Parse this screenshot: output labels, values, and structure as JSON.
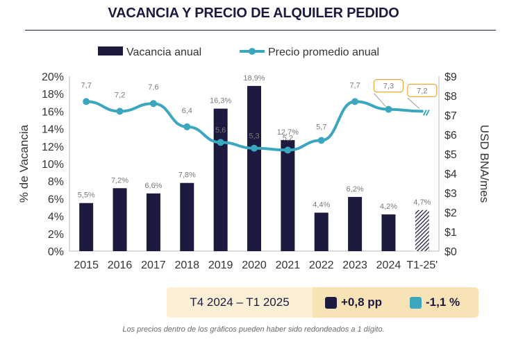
{
  "title": "VACANCIA Y PRECIO DE ALQUILER PEDIDO",
  "chart_data": {
    "type": "bar+line",
    "categories": [
      "2015",
      "2016",
      "2017",
      "2018",
      "2019",
      "2020",
      "2021",
      "2022",
      "2023",
      "2024",
      "T1-25'"
    ],
    "series": [
      {
        "name": "Vacancia anual",
        "axis": "left",
        "type": "bar",
        "values": [
          5.5,
          7.2,
          6.6,
          7.8,
          16.3,
          18.9,
          12.7,
          4.4,
          6.2,
          4.2,
          4.7
        ],
        "labels": [
          "5,5%",
          "7,2%",
          "6,6%",
          "7,8%",
          "16,3%",
          "18,9%",
          "12,7%",
          "4,4%",
          "6,2%",
          "4,2%",
          "4,7%"
        ]
      },
      {
        "name": "Precio promedio anual",
        "axis": "right",
        "type": "line",
        "values": [
          7.7,
          7.2,
          7.6,
          6.4,
          5.6,
          5.3,
          5.2,
          5.7,
          7.7,
          7.3,
          7.2
        ],
        "labels": [
          "7,7",
          "7,2",
          "7,6",
          "6,4",
          "5,6",
          "5,3",
          "5,2",
          "5,7",
          "7,7",
          "7,3",
          "7,2"
        ]
      }
    ],
    "ylabel": "% de Vacancia",
    "y2label": "USD BNA/mes",
    "ylim": [
      0,
      20
    ],
    "y2lim": [
      0,
      9
    ],
    "yticks": [
      "0%",
      "2%",
      "4%",
      "6%",
      "8%",
      "10%",
      "12%",
      "14%",
      "16%",
      "18%",
      "20%"
    ],
    "y2ticks": [
      "$0",
      "$1",
      "$2",
      "$3",
      "$4",
      "$5",
      "$6",
      "$7",
      "$8",
      "$9"
    ],
    "legend": [
      "Vacancia anual",
      "Precio promedio anual"
    ]
  },
  "summary": {
    "period": "T4 2024 – T1 2025",
    "vacancy_change": "+0,8 pp",
    "price_change": "-1,1 %"
  },
  "colors": {
    "bar": "#1c1a3f",
    "line": "#3aa7bf",
    "highlight_border": "#e6a93c"
  },
  "note": "Los precios dentro de los gráficos pueden haber sido redondeados a 1 dígito."
}
